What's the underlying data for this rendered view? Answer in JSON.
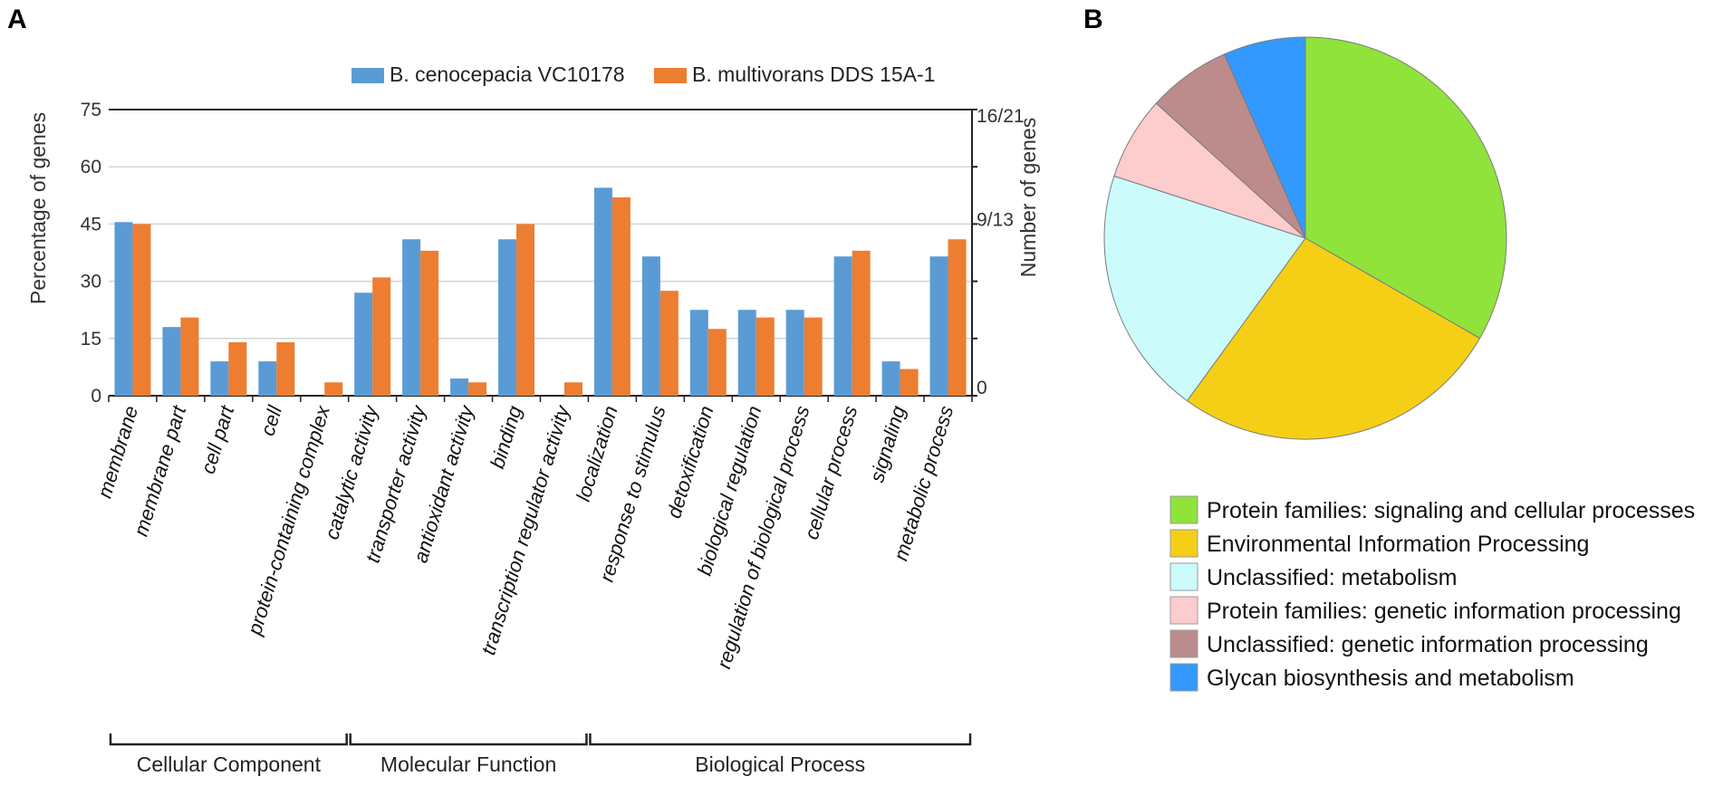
{
  "panels": {
    "a_label": "A",
    "b_label": "B"
  },
  "chart_data": [
    {
      "type": "bar",
      "title": "",
      "ylabel": "Percentage of genes",
      "y2label": "Number of genes",
      "ylim": [
        0,
        75
      ],
      "yticks": [
        "0",
        "15",
        "30",
        "45",
        "60",
        "75"
      ],
      "y2ticks": [
        "0",
        "9/13",
        "16/21"
      ],
      "grid": true,
      "legend_position": "top",
      "categories": [
        "membrane",
        "membrane part",
        "cell part",
        "cell",
        "protein-containing complex",
        "catalytic activity",
        "transporter activity",
        "antioxidant activity",
        "binding",
        "transcription regulator activity",
        "localization",
        "response to stimulus",
        "detoxification",
        "biological regulation",
        "regulation of biological process",
        "cellular process",
        "signaling",
        "metabolic process"
      ],
      "series": [
        {
          "name": "B. cenocepacia VC10178",
          "color": "#5b9bd5",
          "values": [
            45.5,
            18,
            9,
            9,
            0,
            27,
            41,
            4.5,
            41,
            0,
            54.5,
            36.5,
            22.5,
            22.5,
            22.5,
            36.5,
            9,
            36.5
          ]
        },
        {
          "name": "B. multivorans DDS 15A-1",
          "color": "#ed7d31",
          "values": [
            45,
            20.5,
            14,
            14,
            3.5,
            31,
            38,
            3.5,
            45,
            3.5,
            52,
            27.5,
            17.5,
            20.5,
            20.5,
            38,
            7,
            41
          ]
        }
      ],
      "groups": [
        {
          "label": "Cellular Component",
          "from": 0,
          "to": 4
        },
        {
          "label": "Molecular Function",
          "from": 5,
          "to": 9
        },
        {
          "label": "Biological Process",
          "from": 10,
          "to": 17
        }
      ]
    },
    {
      "type": "pie",
      "title": "",
      "legend_position": "bottom",
      "slices": [
        {
          "label": "Protein families: signaling and cellular processes",
          "value": 33.3,
          "color": "#90e33b"
        },
        {
          "label": "Environmental Information Processing",
          "value": 26.7,
          "color": "#f5cf16"
        },
        {
          "label": "Unclassified: metabolism",
          "value": 20.0,
          "color": "#ccfbfb"
        },
        {
          "label": "Protein families: genetic information processing",
          "value": 6.7,
          "color": "#fdcccc"
        },
        {
          "label": "Unclassified: genetic information processing",
          "value": 6.7,
          "color": "#bc8c8c"
        },
        {
          "label": "Glycan biosynthesis and metabolism",
          "value": 6.6,
          "color": "#3399ff"
        }
      ]
    }
  ]
}
